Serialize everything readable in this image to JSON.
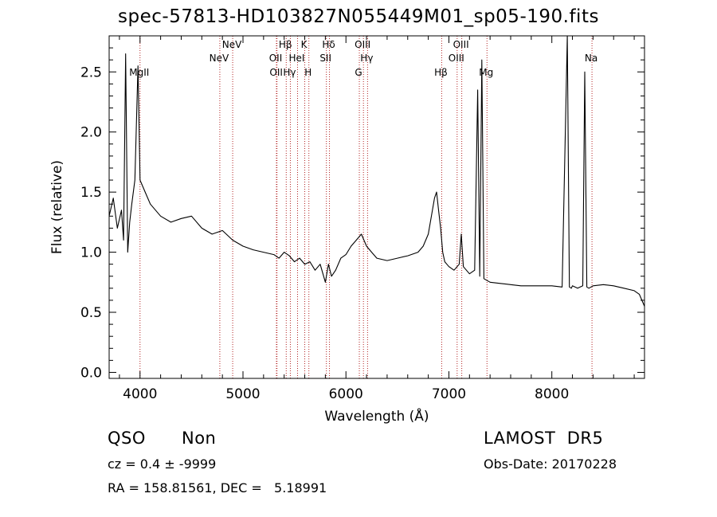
{
  "chart_data": {
    "type": "line",
    "title": "spec-57813-HD103827N055449M01_sp05-190.fits",
    "xlabel": "Wavelength (Å)",
    "ylabel": "Flux (relative)",
    "xlim": [
      3700,
      8900
    ],
    "ylim": [
      -0.05,
      2.8
    ],
    "xticks": [
      4000,
      5000,
      6000,
      7000,
      8000
    ],
    "yticks": [
      0.0,
      0.5,
      1.0,
      1.5,
      2.0,
      2.5
    ],
    "ytick_labels": [
      "0.0",
      "0.5",
      "1.0",
      "1.5",
      "2.0",
      "2.5"
    ],
    "grid": false,
    "line_color": "#000000",
    "marker_color": "#b22222",
    "series": [
      {
        "x": [
          3700,
          3740,
          3780,
          3820,
          3840,
          3860,
          3880,
          3900,
          3920,
          3950,
          3980,
          4000,
          4050,
          4100,
          4150,
          4200,
          4300,
          4400,
          4500,
          4600,
          4700,
          4800,
          4900,
          5000,
          5100,
          5200,
          5300,
          5350,
          5400,
          5450,
          5500,
          5550,
          5600,
          5650,
          5700,
          5750,
          5800,
          5830,
          5860,
          5900,
          5950,
          6000,
          6050,
          6100,
          6150,
          6200,
          6250,
          6300,
          6400,
          6500,
          6600,
          6700,
          6750,
          6800,
          6830,
          6860,
          6880,
          6900,
          6920,
          6940,
          6960,
          6980,
          7000,
          7050,
          7100,
          7120,
          7140,
          7200,
          7250,
          7280,
          7300,
          7320,
          7340,
          7380,
          7400,
          7500,
          7600,
          7700,
          7800,
          7900,
          8000,
          8100,
          8150,
          8170,
          8190,
          8200,
          8250,
          8300,
          8320,
          8340,
          8360,
          8400,
          8500,
          8600,
          8700,
          8800,
          8850,
          8900
        ],
        "y": [
          1.3,
          1.45,
          1.2,
          1.35,
          1.1,
          2.65,
          1.0,
          1.25,
          1.4,
          1.6,
          2.55,
          1.6,
          1.5,
          1.4,
          1.35,
          1.3,
          1.25,
          1.28,
          1.3,
          1.2,
          1.15,
          1.18,
          1.1,
          1.05,
          1.02,
          1.0,
          0.98,
          0.95,
          1.0,
          0.97,
          0.92,
          0.95,
          0.9,
          0.92,
          0.85,
          0.9,
          0.75,
          0.9,
          0.8,
          0.85,
          0.95,
          0.98,
          1.05,
          1.1,
          1.15,
          1.05,
          1.0,
          0.95,
          0.93,
          0.95,
          0.97,
          1.0,
          1.05,
          1.15,
          1.3,
          1.45,
          1.5,
          1.35,
          1.2,
          1.0,
          0.92,
          0.9,
          0.88,
          0.85,
          0.9,
          1.15,
          0.88,
          0.82,
          0.85,
          2.35,
          0.8,
          2.6,
          0.78,
          0.76,
          0.75,
          0.74,
          0.73,
          0.72,
          0.72,
          0.72,
          0.72,
          0.71,
          2.8,
          0.71,
          0.7,
          0.72,
          0.7,
          0.72,
          2.5,
          0.71,
          0.7,
          0.72,
          0.73,
          0.72,
          0.7,
          0.68,
          0.65,
          0.55
        ]
      }
    ],
    "line_markers": [
      {
        "label": "MgII",
        "x": 4000,
        "row": 3
      },
      {
        "label": "NeV",
        "x": 4775,
        "row": 2
      },
      {
        "label": "NeV",
        "x": 4900,
        "row": 1
      },
      {
        "label": "OII",
        "x": 5325,
        "row": 2
      },
      {
        "label": "OII",
        "x": 5330,
        "row": 3
      },
      {
        "label": "Hβ",
        "x": 5420,
        "row": 1
      },
      {
        "label": "Hγ",
        "x": 5460,
        "row": 3
      },
      {
        "label": "HeI",
        "x": 5530,
        "row": 2
      },
      {
        "label": "K",
        "x": 5600,
        "row": 1
      },
      {
        "label": "H",
        "x": 5640,
        "row": 3
      },
      {
        "label": "SII",
        "x": 5810,
        "row": 2
      },
      {
        "label": "Hδ",
        "x": 5840,
        "row": 1
      },
      {
        "label": "G",
        "x": 6130,
        "row": 3
      },
      {
        "label": "OIII",
        "x": 6170,
        "row": 1
      },
      {
        "label": "Hγ",
        "x": 6210,
        "row": 2
      },
      {
        "label": "Hβ",
        "x": 6930,
        "row": 3
      },
      {
        "label": "OIII",
        "x": 7080,
        "row": 2
      },
      {
        "label": "OIII",
        "x": 7125,
        "row": 1
      },
      {
        "label": "Mg",
        "x": 7370,
        "row": 3
      },
      {
        "label": "Na",
        "x": 8390,
        "row": 2
      }
    ]
  },
  "meta": {
    "class": "QSO",
    "subclass": "Non",
    "survey": "LAMOST  DR5",
    "cz": "cz = 0.4 ± -9999",
    "obs_date": "Obs-Date: 20170228",
    "coords": "RA = 158.81561, DEC =   5.18991"
  }
}
